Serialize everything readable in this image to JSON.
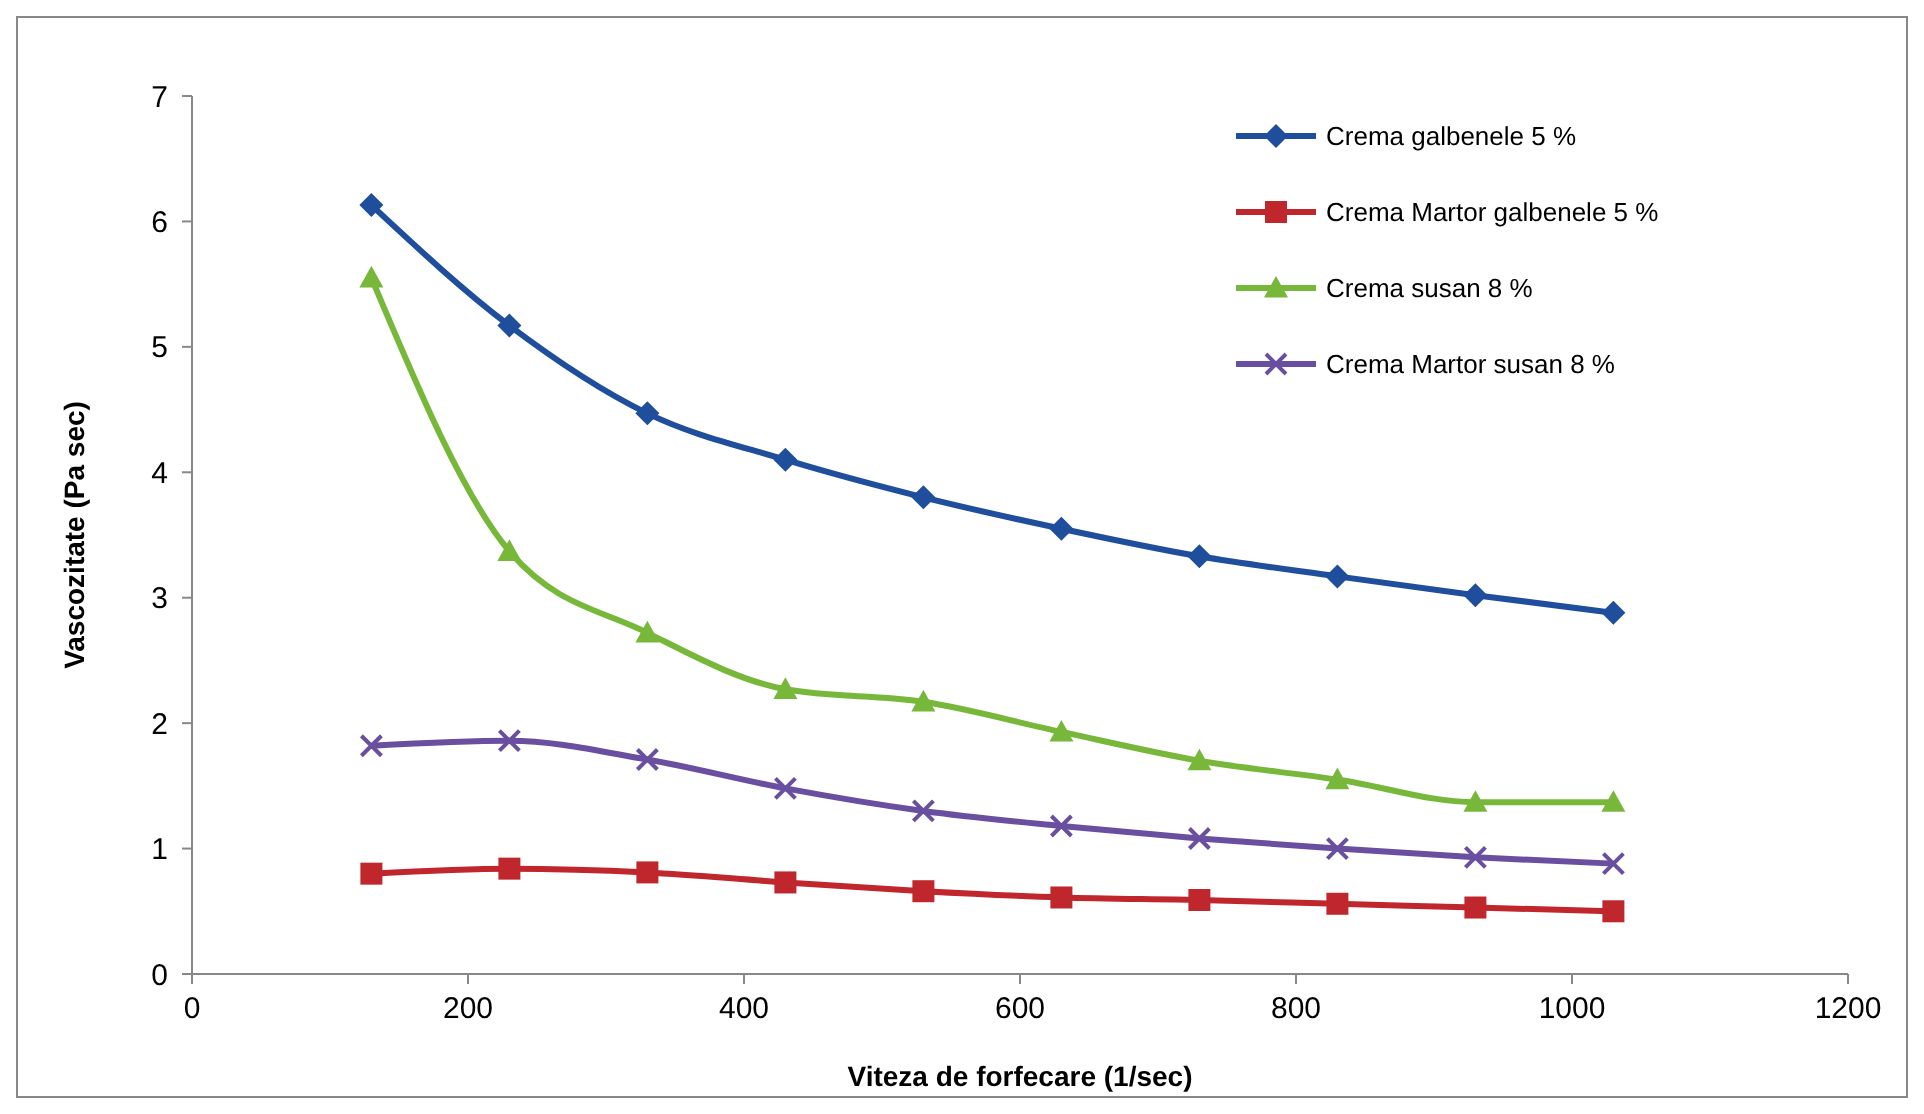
{
  "chart_data": {
    "type": "line",
    "xlabel": "Viteza de forfecare (1/sec)",
    "ylabel": "Vascozitate (Pa sec)",
    "x": [
      130,
      230,
      330,
      430,
      530,
      630,
      730,
      830,
      930,
      1030
    ],
    "xlim": [
      0,
      1200
    ],
    "xticks": [
      0,
      200,
      400,
      600,
      800,
      1000,
      1200
    ],
    "ylim": [
      0,
      7
    ],
    "yticks": [
      0,
      1,
      2,
      3,
      4,
      5,
      6,
      7
    ],
    "grid": false,
    "legend": "top right",
    "line_style": "solid",
    "series": [
      {
        "name": "Crema galbenele  5 %",
        "color": "#1f4e9c",
        "marker": "diamond",
        "values": [
          6.13,
          5.17,
          4.47,
          4.1,
          3.8,
          3.55,
          3.33,
          3.17,
          3.02,
          2.88
        ]
      },
      {
        "name": "Crema Martor galbenele  5 %",
        "color": "#c0272d",
        "marker": "square",
        "values": [
          0.8,
          0.84,
          0.81,
          0.73,
          0.66,
          0.61,
          0.59,
          0.56,
          0.53,
          0.5
        ]
      },
      {
        "name": "Crema susan 8 %",
        "color": "#77b83a",
        "marker": "triangle",
        "values": [
          5.55,
          3.37,
          2.72,
          2.27,
          2.17,
          1.93,
          1.7,
          1.55,
          1.37,
          1.37
        ]
      },
      {
        "name": "Crema Martor susan 8 %",
        "color": "#6a4fa0",
        "marker": "cross",
        "values": [
          1.82,
          1.86,
          1.71,
          1.48,
          1.3,
          1.18,
          1.08,
          1.0,
          0.93,
          0.88
        ]
      }
    ]
  }
}
